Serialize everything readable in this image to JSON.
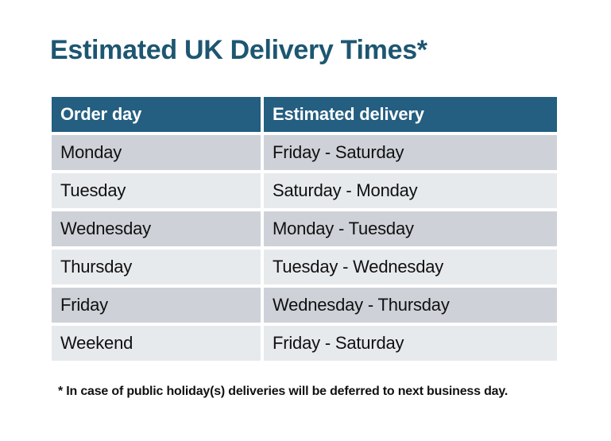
{
  "title": "Estimated UK Delivery Times*",
  "table": {
    "headers": [
      "Order day",
      "Estimated delivery"
    ],
    "rows": [
      {
        "order_day": "Monday",
        "estimated_delivery": "Friday - Saturday"
      },
      {
        "order_day": "Tuesday",
        "estimated_delivery": "Saturday - Monday"
      },
      {
        "order_day": "Wednesday",
        "estimated_delivery": "Monday - Tuesday"
      },
      {
        "order_day": "Thursday",
        "estimated_delivery": "Tuesday - Wednesday"
      },
      {
        "order_day": "Friday",
        "estimated_delivery": "Wednesday - Thursday"
      },
      {
        "order_day": "Weekend",
        "estimated_delivery": "Friday - Saturday"
      }
    ]
  },
  "footnote": "* In case of public holiday(s) deliveries will be deferred to next business day.",
  "colors": {
    "header_bg": "#245E80",
    "row_odd": "#CED2D8",
    "row_even": "#E7EAED",
    "title": "#1D5671"
  }
}
